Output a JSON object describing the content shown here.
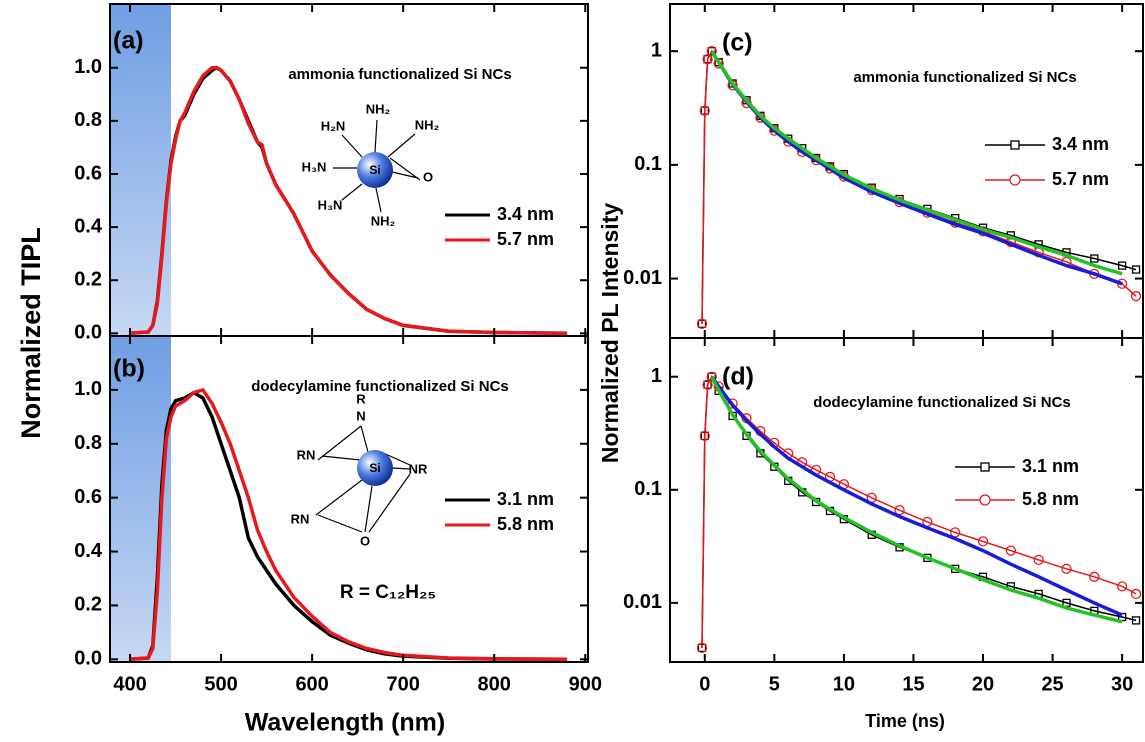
{
  "chart_data": [
    {
      "type": "line",
      "label": "(a)",
      "title": "ammonia functionalized Si NCs",
      "ylabel": "Normalized TIPL",
      "xlim": [
        378,
        903
      ],
      "ylim": [
        -0.01,
        1.24
      ],
      "xticks": [
        400,
        500,
        600,
        700,
        800,
        900
      ],
      "xtick_labels": false,
      "yticks": [
        {
          "value": 0,
          "label": "0.0"
        },
        0.2,
        0.4,
        0.6,
        0.8,
        {
          "value": 1,
          "label": "1.0"
        }
      ],
      "highlight_to": 445,
      "x": [
        400,
        420,
        425,
        430,
        435,
        440,
        445,
        450,
        455,
        460,
        470,
        480,
        490,
        495,
        500,
        510,
        520,
        530,
        540,
        545,
        550,
        560,
        580,
        600,
        620,
        640,
        660,
        680,
        700,
        750,
        800,
        880
      ],
      "series": [
        {
          "name": "3.4 nm",
          "color": "#000000",
          "values": [
            0,
            0.005,
            0.03,
            0.12,
            0.3,
            0.5,
            0.65,
            0.74,
            0.8,
            0.82,
            0.9,
            0.96,
            0.99,
            1.0,
            0.99,
            0.95,
            0.88,
            0.8,
            0.72,
            0.7,
            0.64,
            0.56,
            0.45,
            0.31,
            0.22,
            0.15,
            0.09,
            0.055,
            0.03,
            0.008,
            0.003,
            0
          ]
        },
        {
          "name": "5.7 nm",
          "color": "#e8191c",
          "values": [
            0,
            0.005,
            0.03,
            0.11,
            0.29,
            0.49,
            0.64,
            0.73,
            0.8,
            0.83,
            0.91,
            0.97,
            1.0,
            1.0,
            0.99,
            0.95,
            0.88,
            0.79,
            0.72,
            0.71,
            0.64,
            0.56,
            0.45,
            0.31,
            0.22,
            0.15,
            0.09,
            0.055,
            0.03,
            0.008,
            0.003,
            0
          ]
        }
      ],
      "inset": {
        "center": "Si",
        "labels": [
          "NH₂",
          "H₂N",
          "NH₂",
          "H₃N",
          "O",
          "H₃N",
          "NH₂"
        ]
      }
    },
    {
      "type": "line",
      "label": "(b)",
      "title": "dodecylamine functionalized Si NCs",
      "xlabel": "Wavelength (nm)",
      "xlim": [
        378,
        903
      ],
      "ylim": [
        -0.01,
        1.2
      ],
      "xticks": [
        400,
        500,
        600,
        700,
        800,
        900
      ],
      "xtick_labels": true,
      "yticks": [
        {
          "value": 0,
          "label": "0.0"
        },
        0.2,
        0.4,
        0.6,
        0.8,
        {
          "value": 1,
          "label": "1.0"
        }
      ],
      "highlight_to": 445,
      "x": [
        400,
        420,
        425,
        430,
        435,
        440,
        445,
        450,
        460,
        470,
        480,
        490,
        500,
        510,
        520,
        530,
        540,
        550,
        560,
        580,
        600,
        620,
        640,
        660,
        680,
        700,
        750,
        800,
        880
      ],
      "series": [
        {
          "name": "3.1 nm",
          "color": "#000000",
          "values": [
            0,
            0.005,
            0.05,
            0.3,
            0.65,
            0.85,
            0.93,
            0.96,
            0.97,
            0.99,
            0.97,
            0.9,
            0.8,
            0.7,
            0.6,
            0.45,
            0.38,
            0.33,
            0.28,
            0.2,
            0.14,
            0.09,
            0.06,
            0.035,
            0.02,
            0.012,
            0.004,
            0.001,
            0
          ]
        },
        {
          "name": "5.8 nm",
          "color": "#e8191c",
          "values": [
            0,
            0.005,
            0.04,
            0.25,
            0.6,
            0.82,
            0.9,
            0.94,
            0.96,
            0.99,
            1.0,
            0.95,
            0.88,
            0.8,
            0.7,
            0.6,
            0.48,
            0.4,
            0.33,
            0.23,
            0.16,
            0.1,
            0.065,
            0.04,
            0.025,
            0.015,
            0.005,
            0.002,
            0
          ]
        }
      ],
      "inset": {
        "center": "Si",
        "labels": [
          "R",
          "N",
          "RN",
          "NR",
          "RN",
          "O"
        ],
        "note": "R = C₁₂H₂₅"
      }
    },
    {
      "type": "line",
      "label": "(c)",
      "title": "ammonia functionalized Si NCs",
      "ylabel": "Normalized PL Intensity",
      "yscale": "log",
      "xlim": [
        -2.5,
        31.5
      ],
      "ylim": [
        0.003,
        2.6
      ],
      "xticks": [
        0,
        5,
        10,
        15,
        20,
        25,
        30
      ],
      "xtick_labels": false,
      "yticks": [
        0.01,
        0.1,
        1
      ],
      "x": [
        -0.2,
        0,
        0.2,
        0.5,
        1,
        2,
        3,
        4,
        5,
        6,
        7,
        8,
        9,
        10,
        12,
        14,
        16,
        18,
        20,
        22,
        24,
        26,
        28,
        30,
        31
      ],
      "series": [
        {
          "name": "3.4 nm",
          "color": "#000000",
          "marker": "square",
          "values": [
            0.004,
            0.3,
            0.85,
            1.0,
            0.8,
            0.52,
            0.37,
            0.27,
            0.21,
            0.17,
            0.14,
            0.115,
            0.097,
            0.083,
            0.063,
            0.05,
            0.041,
            0.034,
            0.028,
            0.024,
            0.02,
            0.017,
            0.015,
            0.013,
            0.012
          ]
        },
        {
          "name": "5.7 nm",
          "color": "#e8191c",
          "marker": "circle",
          "values": [
            0.004,
            0.3,
            0.85,
            1.0,
            0.78,
            0.5,
            0.35,
            0.26,
            0.2,
            0.16,
            0.13,
            0.11,
            0.093,
            0.079,
            0.06,
            0.047,
            0.038,
            0.031,
            0.026,
            0.021,
            0.017,
            0.014,
            0.011,
            0.009,
            0.007
          ]
        },
        {
          "color": "#1a1adc",
          "x": [
            0.5,
            1,
            2,
            3,
            4,
            5,
            6,
            7,
            8,
            10,
            12,
            14,
            16,
            18,
            20,
            22,
            24,
            26,
            28,
            30
          ],
          "values": [
            1.0,
            0.8,
            0.51,
            0.36,
            0.26,
            0.2,
            0.16,
            0.13,
            0.11,
            0.077,
            0.058,
            0.046,
            0.037,
            0.03,
            0.025,
            0.02,
            0.016,
            0.013,
            0.011,
            0.009
          ]
        },
        {
          "color": "#22c322",
          "x": [
            0.5,
            1,
            2,
            3,
            4,
            5,
            6,
            7,
            8,
            10,
            12,
            14,
            16,
            18,
            20,
            22,
            24,
            26,
            28,
            30
          ],
          "values": [
            1.0,
            0.8,
            0.52,
            0.37,
            0.27,
            0.21,
            0.17,
            0.14,
            0.115,
            0.082,
            0.062,
            0.049,
            0.04,
            0.033,
            0.027,
            0.023,
            0.019,
            0.016,
            0.013,
            0.011
          ]
        }
      ]
    },
    {
      "type": "line",
      "label": "(d)",
      "title": "dodecylamine functionalized Si NCs",
      "xlabel": "Time (ns)",
      "yscale": "log",
      "xlim": [
        -2.5,
        31.5
      ],
      "ylim": [
        0.003,
        2.2
      ],
      "xticks": [
        0,
        5,
        10,
        15,
        20,
        25,
        30
      ],
      "xtick_labels": true,
      "yticks": [
        0.01,
        0.1,
        1
      ],
      "x": [
        -0.2,
        0,
        0.2,
        0.5,
        1,
        2,
        3,
        4,
        5,
        6,
        7,
        8,
        9,
        10,
        12,
        14,
        16,
        18,
        20,
        22,
        24,
        26,
        28,
        30,
        31
      ],
      "series": [
        {
          "name": "3.1 nm",
          "color": "#000000",
          "marker": "square",
          "values": [
            0.004,
            0.3,
            0.85,
            1.0,
            0.75,
            0.45,
            0.3,
            0.21,
            0.16,
            0.12,
            0.095,
            0.078,
            0.065,
            0.055,
            0.04,
            0.031,
            0.025,
            0.02,
            0.017,
            0.014,
            0.012,
            0.01,
            0.0085,
            0.0075,
            0.007
          ]
        },
        {
          "name": "5.8 nm",
          "color": "#e8191c",
          "marker": "circle",
          "values": [
            0.004,
            0.3,
            0.85,
            1.0,
            0.82,
            0.58,
            0.43,
            0.33,
            0.26,
            0.21,
            0.175,
            0.15,
            0.13,
            0.112,
            0.085,
            0.066,
            0.052,
            0.042,
            0.035,
            0.029,
            0.024,
            0.02,
            0.017,
            0.014,
            0.012
          ]
        },
        {
          "color": "#1a1adc",
          "x": [
            0.5,
            1,
            2,
            3,
            4,
            5,
            6,
            7,
            8,
            10,
            12,
            14,
            16,
            18,
            20,
            22,
            24,
            26,
            28,
            30
          ],
          "values": [
            1.0,
            0.82,
            0.56,
            0.41,
            0.31,
            0.24,
            0.19,
            0.16,
            0.135,
            0.1,
            0.075,
            0.058,
            0.046,
            0.037,
            0.029,
            0.022,
            0.017,
            0.013,
            0.01,
            0.0078
          ]
        },
        {
          "color": "#22c322",
          "x": [
            0.5,
            1,
            2,
            3,
            4,
            5,
            6,
            7,
            8,
            10,
            12,
            14,
            16,
            18,
            20,
            22,
            24,
            26,
            28,
            30
          ],
          "values": [
            1.0,
            0.76,
            0.46,
            0.31,
            0.22,
            0.165,
            0.125,
            0.1,
            0.08,
            0.057,
            0.042,
            0.032,
            0.025,
            0.02,
            0.016,
            0.013,
            0.011,
            0.009,
            0.0078,
            0.0068
          ]
        }
      ]
    }
  ]
}
